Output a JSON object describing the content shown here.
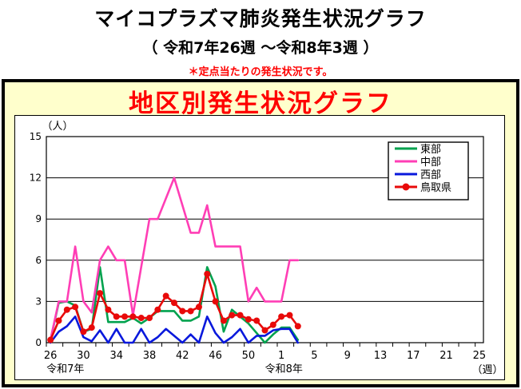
{
  "page": {
    "main_title": "マイコプラズマ肺炎発生状況グラフ",
    "subtitle": "（ 令和7年26週 ～令和8年3週 ）",
    "note": "＊定点当たりの発生状況です。"
  },
  "panel": {
    "title": "地区別発生状況グラフ",
    "title_color": "#FF0000",
    "bg_color": "#FFFFCC"
  },
  "chart_data": {
    "type": "line",
    "title": "地区別発生状況グラフ",
    "y_unit_label": "（人）",
    "x_unit_label": "（週）",
    "ylim": [
      0,
      15
    ],
    "yticks": [
      0,
      3,
      6,
      9,
      12,
      15
    ],
    "grid": true,
    "legend_position": "top-right",
    "x_axis": {
      "total_slots": 53,
      "tick_labels": [
        {
          "slot": 0,
          "label": "26"
        },
        {
          "slot": 4,
          "label": "30"
        },
        {
          "slot": 8,
          "label": "34"
        },
        {
          "slot": 12,
          "label": "38"
        },
        {
          "slot": 16,
          "label": "42"
        },
        {
          "slot": 20,
          "label": "46"
        },
        {
          "slot": 24,
          "label": "50"
        },
        {
          "slot": 28,
          "label": "1"
        },
        {
          "slot": 32,
          "label": "5"
        },
        {
          "slot": 36,
          "label": "9"
        },
        {
          "slot": 40,
          "label": "13"
        },
        {
          "slot": 44,
          "label": "17"
        },
        {
          "slot": 48,
          "label": "21"
        },
        {
          "slot": 52,
          "label": "25"
        }
      ],
      "era_labels": [
        {
          "label": "令和7年",
          "slot": 1.8
        },
        {
          "label": "令和8年",
          "slot": 28.3
        }
      ]
    },
    "weeks": [
      "26",
      "27",
      "28",
      "29",
      "30",
      "31",
      "32",
      "33",
      "34",
      "35",
      "36",
      "37",
      "38",
      "39",
      "40",
      "41",
      "42",
      "43",
      "44",
      "45",
      "46",
      "47",
      "48",
      "49",
      "50",
      "51",
      "52",
      "53",
      "1",
      "2",
      "3"
    ],
    "series": [
      {
        "key": "eastern",
        "name": "東部",
        "color": "#00A24E",
        "marker": false,
        "values": [
          0.2,
          2.9,
          3.0,
          2.7,
          0.8,
          1.0,
          5.5,
          1.5,
          1.5,
          1.5,
          1.8,
          1.4,
          1.8,
          2.3,
          2.3,
          2.3,
          1.6,
          1.6,
          1.9,
          5.5,
          4.1,
          0.8,
          2.4,
          1.9,
          1.4,
          0.7,
          0.0,
          0.6,
          1.1,
          1.1,
          0.2
        ]
      },
      {
        "key": "central",
        "name": "中部",
        "color": "#FF3EB5",
        "marker": false,
        "values": [
          0.2,
          3.0,
          3.0,
          7.0,
          3.0,
          2.2,
          6.0,
          7.0,
          6.0,
          6.0,
          2.0,
          5.5,
          9.0,
          9.0,
          10.5,
          12.0,
          10.0,
          8.0,
          8.0,
          10.0,
          7.0,
          7.0,
          7.0,
          7.0,
          3.0,
          4.0,
          3.0,
          3.0,
          3.0,
          6.0,
          6.0
        ]
      },
      {
        "key": "western",
        "name": "西部",
        "color": "#0818DC",
        "marker": false,
        "values": [
          0.0,
          0.8,
          1.2,
          1.9,
          0.4,
          0.1,
          0.9,
          0.0,
          1.0,
          0.0,
          0.0,
          1.0,
          0.0,
          0.4,
          1.0,
          0.5,
          0.0,
          0.6,
          0.0,
          1.9,
          0.7,
          0.0,
          0.4,
          1.0,
          0.0,
          0.5,
          0.5,
          0.9,
          1.0,
          1.0,
          0.0
        ]
      },
      {
        "key": "tottori",
        "name": "鳥取県",
        "color": "#E80A0A",
        "marker": true,
        "values": [
          0.2,
          1.6,
          2.4,
          2.6,
          0.8,
          1.1,
          3.6,
          2.4,
          1.9,
          1.9,
          1.9,
          1.8,
          1.8,
          2.4,
          3.4,
          2.9,
          2.3,
          2.3,
          2.6,
          5.0,
          3.0,
          1.6,
          2.0,
          2.0,
          1.7,
          1.6,
          0.9,
          1.3,
          1.9,
          2.0,
          1.2
        ]
      }
    ]
  }
}
